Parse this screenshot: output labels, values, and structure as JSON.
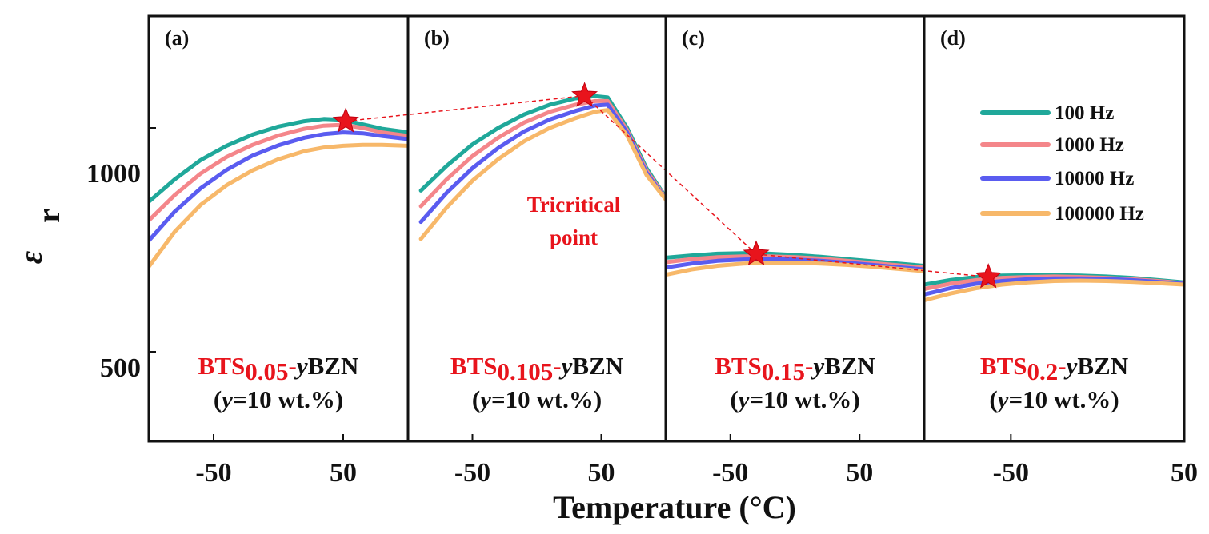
{
  "chart_data": {
    "type": "line",
    "xlabel": "Temperature (°C)",
    "ylabel_symbol": "ε",
    "ylabel_subscript": "r",
    "ylim": [
      300,
      1250
    ],
    "y_ticks": [
      500,
      1000
    ],
    "y_tick_labels": [
      "500",
      "1000"
    ],
    "x_tick_labels": [
      "-50",
      "50"
    ],
    "series_names": [
      "100 Hz",
      "1000 Hz",
      "10000 Hz",
      "100000 Hz"
    ],
    "series_colors": [
      "#20a89a",
      "#f4868a",
      "#5a5cf0",
      "#f7b86a"
    ],
    "star_color": "#e8141c",
    "tricritical_label": [
      "Tricritical",
      "point"
    ],
    "panels": [
      {
        "label": "(a)",
        "xlim": [
          -100,
          100
        ],
        "x_ticks": [
          -50,
          50
        ],
        "comp_prefix": "BTS",
        "comp_sub": "0.05",
        "comp_suffix": "-",
        "comp_y": "y",
        "comp_tail": "BZN",
        "cond_open": "(",
        "cond_y": "y",
        "cond_rest": "=10 wt.%)",
        "star": {
          "x": 52,
          "y": 1015
        },
        "series": [
          {
            "name": "100 Hz",
            "x": [
              -100,
              -80,
              -60,
              -40,
              -20,
              0,
              20,
              35,
              50,
              65,
              80,
              100
            ],
            "y": [
              835,
              885,
              928,
              960,
              985,
              1003,
              1015,
              1020,
              1018,
              1008,
              998,
              990
            ]
          },
          {
            "name": "1000 Hz",
            "x": [
              -100,
              -80,
              -60,
              -40,
              -20,
              0,
              20,
              35,
              50,
              65,
              80,
              100
            ],
            "y": [
              793,
              850,
              898,
              935,
              962,
              983,
              998,
              1005,
              1007,
              1000,
              990,
              982
            ]
          },
          {
            "name": "10000 Hz",
            "x": [
              -100,
              -80,
              -60,
              -40,
              -20,
              0,
              20,
              35,
              50,
              65,
              80,
              100
            ],
            "y": [
              748,
              813,
              865,
              906,
              938,
              961,
              978,
              986,
              990,
              988,
              982,
              975
            ]
          },
          {
            "name": "100000 Hz",
            "x": [
              -100,
              -80,
              -60,
              -40,
              -20,
              0,
              20,
              35,
              50,
              65,
              80,
              100
            ],
            "y": [
              690,
              768,
              828,
              872,
              905,
              930,
              948,
              956,
              960,
              962,
              962,
              960
            ]
          }
        ]
      },
      {
        "label": "(b)",
        "xlim": [
          -100,
          100
        ],
        "x_ticks": [
          -50,
          50
        ],
        "comp_prefix": "BTS",
        "comp_sub": "0.105",
        "comp_suffix": "-",
        "comp_y": "y",
        "comp_tail": "BZN",
        "cond_open": "(",
        "cond_y": "y",
        "cond_rest": "=10 wt.%)",
        "star": {
          "x": 37,
          "y": 1072
        },
        "series": [
          {
            "name": "100 Hz",
            "x": [
              -90,
              -70,
              -50,
              -30,
              -10,
              10,
              30,
              45,
              55,
              70,
              85,
              100
            ],
            "y": [
              860,
              915,
              963,
              1000,
              1030,
              1052,
              1066,
              1071,
              1068,
              1000,
              910,
              845
            ]
          },
          {
            "name": "1000 Hz",
            "x": [
              -90,
              -70,
              -50,
              -30,
              -10,
              10,
              30,
              45,
              55,
              70,
              85,
              100
            ],
            "y": [
              825,
              885,
              937,
              978,
              1012,
              1036,
              1052,
              1060,
              1060,
              995,
              905,
              843
            ]
          },
          {
            "name": "10000 Hz",
            "x": [
              -90,
              -70,
              -50,
              -30,
              -10,
              10,
              30,
              45,
              55,
              70,
              85,
              100
            ],
            "y": [
              790,
              855,
              910,
              955,
              992,
              1019,
              1038,
              1050,
              1052,
              990,
              900,
              841
            ]
          },
          {
            "name": "100000 Hz",
            "x": [
              -90,
              -70,
              -50,
              -30,
              -10,
              10,
              30,
              45,
              55,
              70,
              85,
              100
            ],
            "y": [
              752,
              822,
              882,
              930,
              970,
              1000,
              1022,
              1036,
              1040,
              983,
              895,
              840
            ]
          }
        ]
      },
      {
        "label": "(c)",
        "xlim": [
          -100,
          100
        ],
        "x_ticks": [
          -50,
          50
        ],
        "comp_prefix": "BTS",
        "comp_sub": "0.15",
        "comp_suffix": "-",
        "comp_y": "y",
        "comp_tail": "BZN",
        "cond_open": "(",
        "cond_y": "y",
        "cond_rest": "=10 wt.%)",
        "star": {
          "x": -30,
          "y": 718
        },
        "series": [
          {
            "name": "100 Hz",
            "x": [
              -100,
              -80,
              -60,
              -40,
              -20,
              0,
              20,
              40,
              60,
              80,
              100
            ],
            "y": [
              710,
              715,
              719,
              720,
              719,
              716,
              712,
              707,
              702,
              697,
              692
            ]
          },
          {
            "name": "1000 Hz",
            "x": [
              -100,
              -80,
              -60,
              -40,
              -20,
              0,
              20,
              40,
              60,
              80,
              100
            ],
            "y": [
              700,
              707,
              711,
              713,
              713,
              711,
              708,
              703,
              698,
              693,
              688
            ]
          },
          {
            "name": "10000 Hz",
            "x": [
              -100,
              -80,
              -60,
              -40,
              -20,
              0,
              20,
              40,
              60,
              80,
              100
            ],
            "y": [
              688,
              697,
              703,
              706,
              707,
              706,
              703,
              699,
              694,
              689,
              684
            ]
          },
          {
            "name": "100000 Hz",
            "x": [
              -100,
              -80,
              -60,
              -40,
              -20,
              0,
              20,
              40,
              60,
              80,
              100
            ],
            "y": [
              672,
              684,
              692,
              697,
              699,
              699,
              697,
              694,
              690,
              685,
              680
            ]
          }
        ]
      },
      {
        "label": "(d)",
        "xlim": [
          -100,
          50
        ],
        "x_ticks": [
          -50,
          50
        ],
        "comp_prefix": "BTS",
        "comp_sub": "0.2",
        "comp_suffix": "-",
        "comp_y": "y",
        "comp_tail": "BZN",
        "cond_open": "(",
        "cond_y": "y",
        "cond_rest": "=10 wt.%)",
        "star": {
          "x": -63,
          "y": 667
        },
        "series": [
          {
            "name": "100 Hz",
            "x": [
              -100,
              -85,
              -70,
              -55,
              -40,
              -25,
              -10,
              5,
              20,
              35,
              50
            ],
            "y": [
              650,
              660,
              667,
              670,
              671,
              671,
              670,
              668,
              665,
              660,
              655
            ]
          },
          {
            "name": "1000 Hz",
            "x": [
              -100,
              -85,
              -70,
              -55,
              -40,
              -25,
              -10,
              5,
              20,
              35,
              50
            ],
            "y": [
              640,
              652,
              660,
              665,
              667,
              668,
              667,
              665,
              662,
              658,
              653
            ]
          },
          {
            "name": "10000 Hz",
            "x": [
              -100,
              -85,
              -70,
              -55,
              -40,
              -25,
              -10,
              5,
              20,
              35,
              50
            ],
            "y": [
              628,
              642,
              652,
              658,
              662,
              664,
              664,
              663,
              660,
              656,
              652
            ]
          },
          {
            "name": "100000 Hz",
            "x": [
              -100,
              -85,
              -70,
              -55,
              -40,
              -25,
              -10,
              5,
              20,
              35,
              50
            ],
            "y": [
              615,
              630,
              642,
              650,
              655,
              658,
              659,
              658,
              656,
              653,
              650
            ]
          }
        ]
      }
    ]
  }
}
